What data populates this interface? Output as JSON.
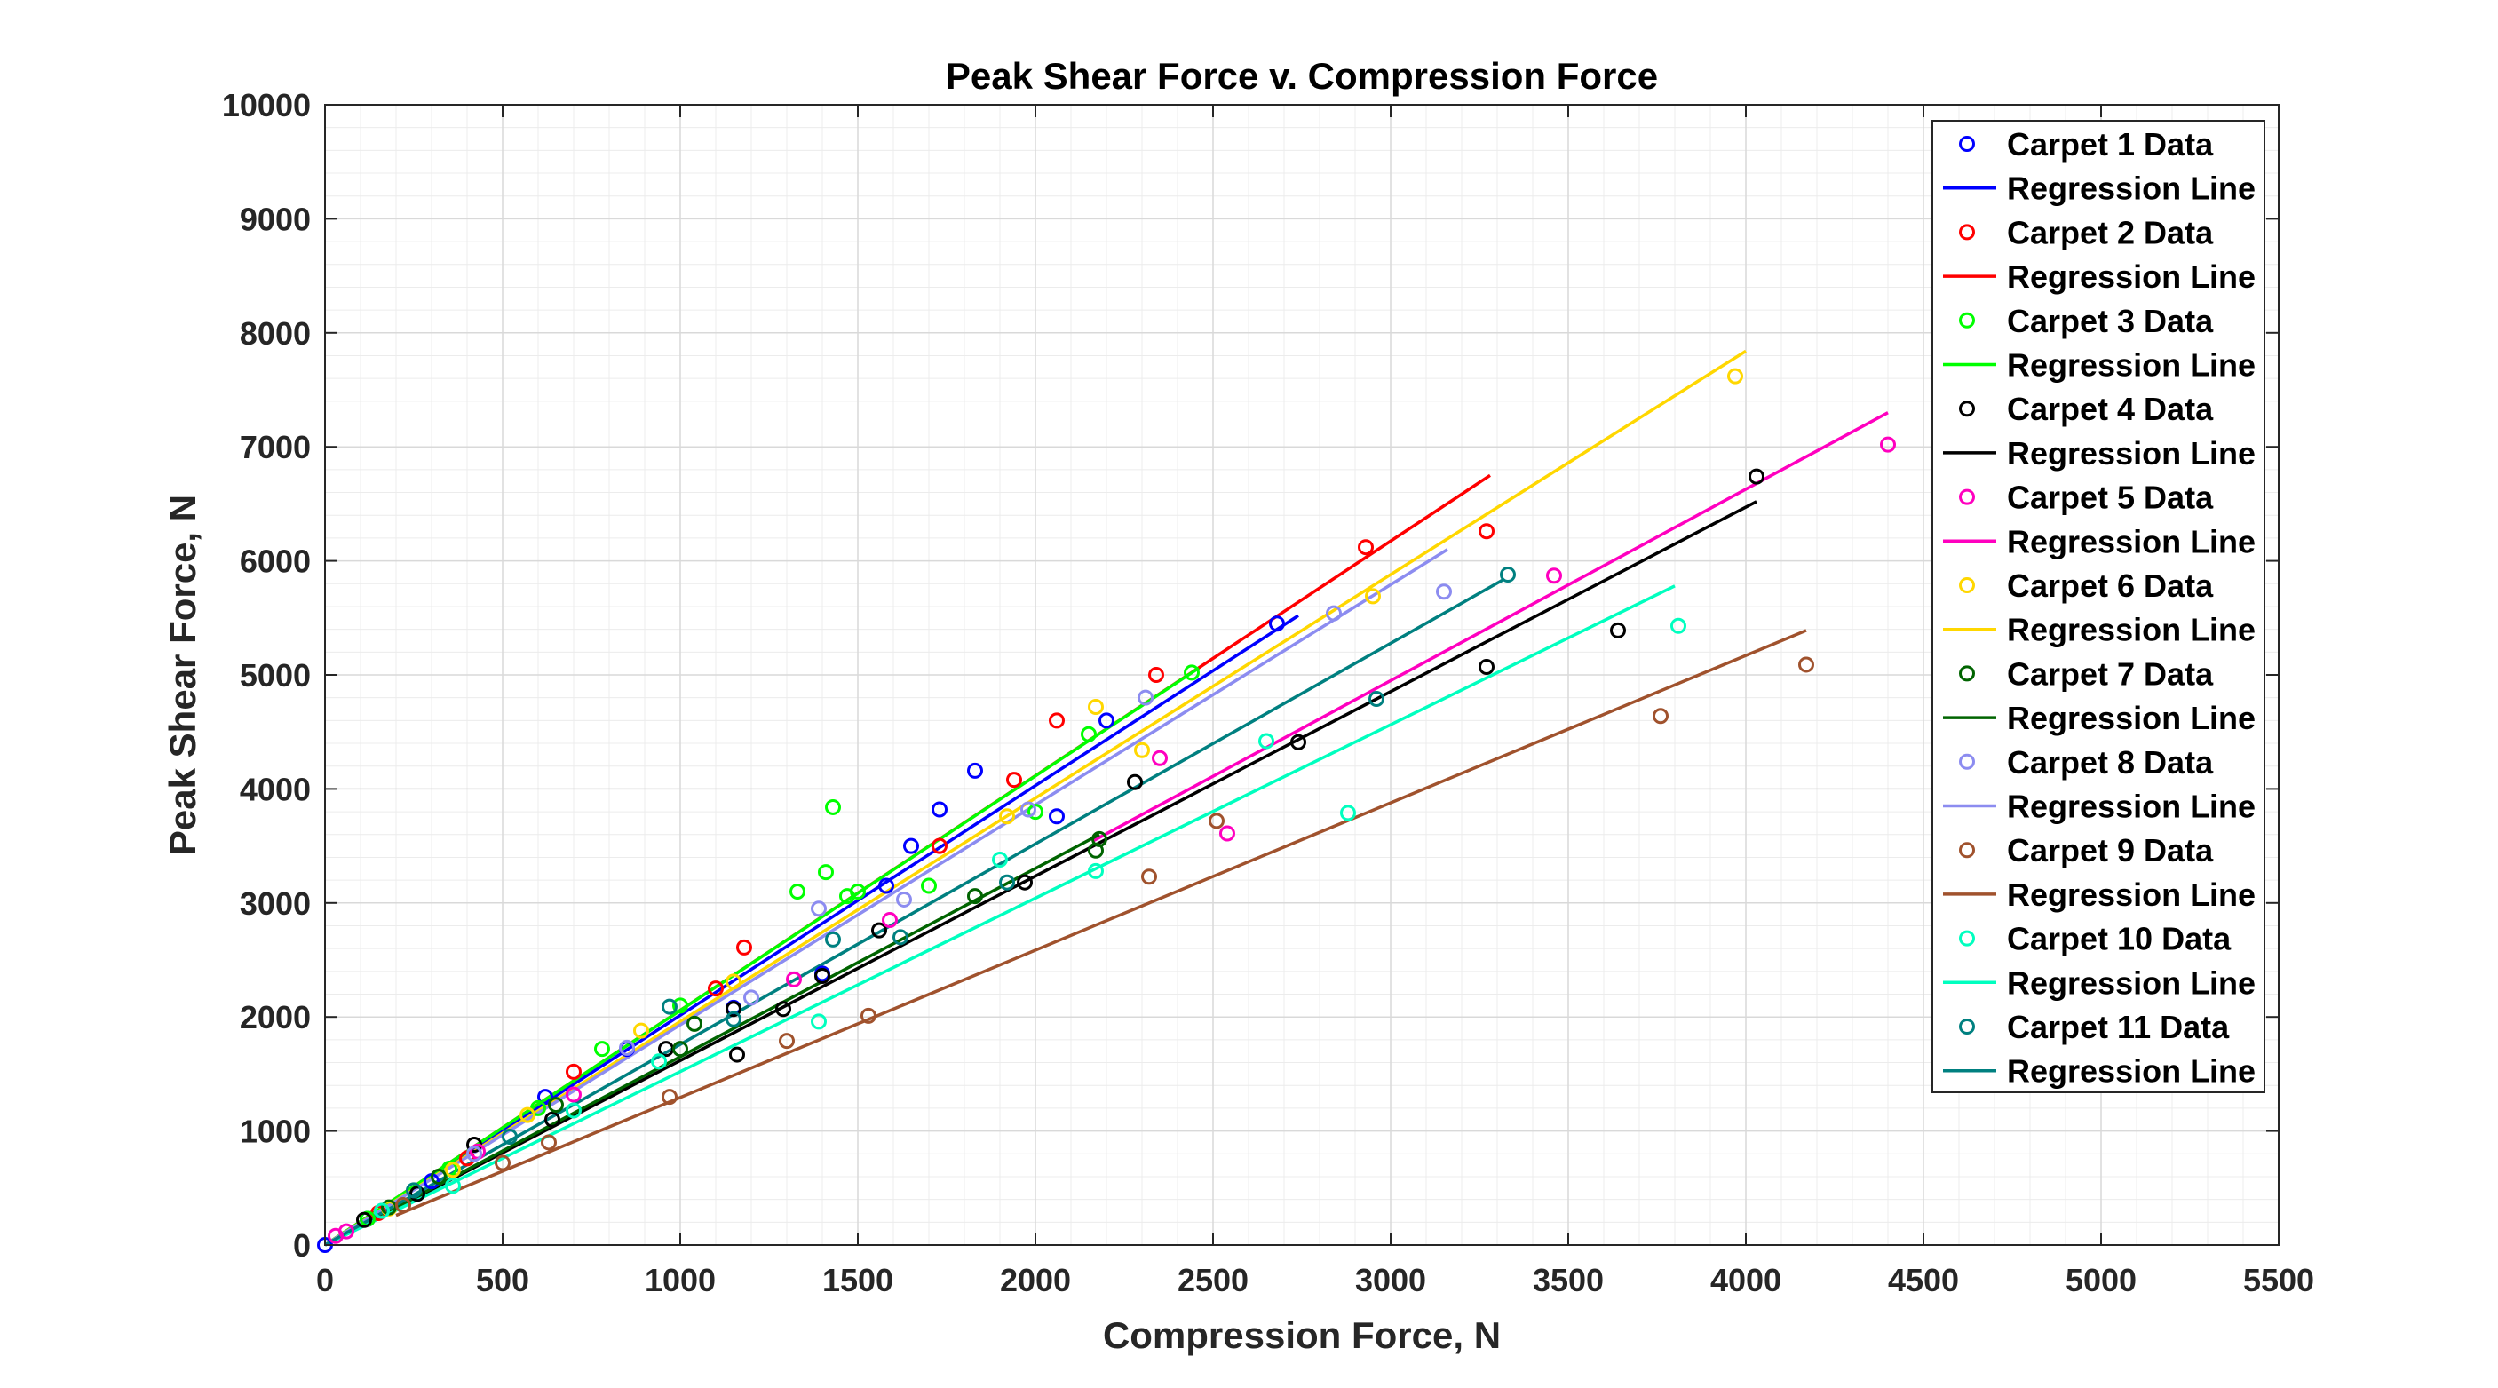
{
  "chart_data": {
    "type": "scatter",
    "title": "Peak Shear Force v. Compression Force",
    "xlabel": "Compression Force, N",
    "ylabel": "Peak Shear Force, N",
    "xlim": [
      0,
      5500
    ],
    "ylim": [
      0,
      10000
    ],
    "xticks": [
      0,
      500,
      1000,
      1500,
      2000,
      2500,
      3000,
      3500,
      4000,
      4500,
      5000,
      5500
    ],
    "yticks": [
      0,
      1000,
      2000,
      3000,
      4000,
      5000,
      6000,
      7000,
      8000,
      9000,
      10000
    ],
    "grid": true,
    "legend_position": "top-right",
    "series": [
      {
        "name": "Carpet 1 Data",
        "line_name": "Regression Line",
        "color": "#0000FF",
        "points": [
          [
            0,
            0
          ],
          [
            120,
            230
          ],
          [
            300,
            560
          ],
          [
            620,
            1300
          ],
          [
            850,
            1720
          ],
          [
            1150,
            2080
          ],
          [
            1400,
            2380
          ],
          [
            1580,
            3150
          ],
          [
            1650,
            3500
          ],
          [
            1730,
            3820
          ],
          [
            1830,
            4160
          ],
          [
            2060,
            3760
          ],
          [
            2200,
            4600
          ],
          [
            2680,
            5450
          ]
        ],
        "line": [
          [
            0,
            0
          ],
          [
            2740,
            5520
          ]
        ]
      },
      {
        "name": "Carpet 2 Data",
        "line_name": "Regression Line",
        "color": "#FF0000",
        "points": [
          [
            150,
            280
          ],
          [
            400,
            760
          ],
          [
            700,
            1520
          ],
          [
            1100,
            2250
          ],
          [
            1180,
            2610
          ],
          [
            1730,
            3500
          ],
          [
            1940,
            4080
          ],
          [
            2060,
            4600
          ],
          [
            2340,
            5000
          ],
          [
            2930,
            6120
          ],
          [
            3270,
            6260
          ]
        ],
        "line": [
          [
            0,
            0
          ],
          [
            3280,
            6750
          ]
        ]
      },
      {
        "name": "Carpet 3 Data",
        "line_name": "Regression Line",
        "color": "#00FF00",
        "points": [
          [
            120,
            230
          ],
          [
            350,
            670
          ],
          [
            600,
            1200
          ],
          [
            780,
            1720
          ],
          [
            1000,
            2100
          ],
          [
            1330,
            3100
          ],
          [
            1410,
            3270
          ],
          [
            1430,
            3840
          ],
          [
            1470,
            3060
          ],
          [
            1500,
            3100
          ],
          [
            1700,
            3150
          ],
          [
            2000,
            3800
          ],
          [
            2150,
            4480
          ],
          [
            2440,
            5020
          ]
        ],
        "line": [
          [
            0,
            0
          ],
          [
            2460,
            5060
          ]
        ]
      },
      {
        "name": "Carpet 4 Data",
        "line_name": "Regression Line",
        "color": "#000000",
        "points": [
          [
            110,
            220
          ],
          [
            260,
            450
          ],
          [
            420,
            880
          ],
          [
            640,
            1100
          ],
          [
            960,
            1720
          ],
          [
            1150,
            2070
          ],
          [
            1160,
            1670
          ],
          [
            1290,
            2070
          ],
          [
            1400,
            2360
          ],
          [
            1560,
            2760
          ],
          [
            1970,
            3180
          ],
          [
            2280,
            4060
          ],
          [
            2740,
            4410
          ],
          [
            3270,
            5070
          ],
          [
            3640,
            5390
          ],
          [
            4030,
            6740
          ]
        ],
        "line": [
          [
            0,
            0
          ],
          [
            4030,
            6520
          ]
        ]
      },
      {
        "name": "Carpet 5 Data",
        "line_name": "Regression Line",
        "color": "#FF00BF",
        "points": [
          [
            30,
            80
          ],
          [
            60,
            120
          ],
          [
            430,
            820
          ],
          [
            700,
            1320
          ],
          [
            1320,
            2330
          ],
          [
            1590,
            2850
          ],
          [
            2350,
            4270
          ],
          [
            2540,
            3610
          ],
          [
            3460,
            5870
          ],
          [
            4400,
            7020
          ]
        ],
        "line": [
          [
            2160,
            3540
          ],
          [
            4400,
            7300
          ]
        ]
      },
      {
        "name": "Carpet 6 Data",
        "line_name": "Regression Line",
        "color": "#FFD700",
        "points": [
          [
            180,
            320
          ],
          [
            360,
            660
          ],
          [
            570,
            1140
          ],
          [
            890,
            1880
          ],
          [
            1150,
            2310
          ],
          [
            1920,
            3760
          ],
          [
            2170,
            4720
          ],
          [
            2300,
            4340
          ],
          [
            2950,
            5690
          ],
          [
            3970,
            7620
          ]
        ],
        "line": [
          [
            0,
            0
          ],
          [
            4000,
            7840
          ]
        ]
      },
      {
        "name": "Carpet 7 Data",
        "line_name": "Regression Line",
        "color": "#006400",
        "points": [
          [
            180,
            330
          ],
          [
            320,
            600
          ],
          [
            650,
            1230
          ],
          [
            1000,
            1720
          ],
          [
            1040,
            1940
          ],
          [
            1830,
            3060
          ],
          [
            2170,
            3460
          ],
          [
            2180,
            3560
          ]
        ],
        "line": [
          [
            0,
            0
          ],
          [
            2180,
            3600
          ]
        ]
      },
      {
        "name": "Carpet 8 Data",
        "line_name": "Regression Line",
        "color": "#8C8CF0",
        "points": [
          [
            160,
            300
          ],
          [
            420,
            800
          ],
          [
            850,
            1730
          ],
          [
            1200,
            2170
          ],
          [
            1390,
            2950
          ],
          [
            1630,
            3030
          ],
          [
            1980,
            3820
          ],
          [
            2310,
            4800
          ],
          [
            2840,
            5540
          ],
          [
            3150,
            5730
          ]
        ],
        "line": [
          [
            0,
            0
          ],
          [
            3160,
            6100
          ]
        ]
      },
      {
        "name": "Carpet 9 Data",
        "line_name": "Regression Line",
        "color": "#A0522D",
        "points": [
          [
            220,
            350
          ],
          [
            500,
            720
          ],
          [
            630,
            900
          ],
          [
            970,
            1300
          ],
          [
            1300,
            1790
          ],
          [
            1530,
            2010
          ],
          [
            2320,
            3230
          ],
          [
            2510,
            3720
          ],
          [
            3760,
            4640
          ],
          [
            4170,
            5090
          ]
        ],
        "line": [
          [
            200,
            260
          ],
          [
            4170,
            5390
          ]
        ]
      },
      {
        "name": "Carpet 10 Data",
        "line_name": "Regression Line",
        "color": "#00FFBF",
        "points": [
          [
            160,
            300
          ],
          [
            360,
            520
          ],
          [
            700,
            1180
          ],
          [
            940,
            1610
          ],
          [
            1390,
            1960
          ],
          [
            1900,
            3380
          ],
          [
            2170,
            3280
          ],
          [
            2650,
            4420
          ],
          [
            2880,
            3790
          ],
          [
            3810,
            5430
          ]
        ],
        "line": [
          [
            0,
            0
          ],
          [
            3800,
            5780
          ]
        ]
      },
      {
        "name": "Carpet 11 Data",
        "line_name": "Regression Line",
        "color": "#008080",
        "points": [
          [
            250,
            480
          ],
          [
            520,
            950
          ],
          [
            970,
            2090
          ],
          [
            1150,
            1980
          ],
          [
            1430,
            2680
          ],
          [
            1620,
            2700
          ],
          [
            1920,
            3180
          ],
          [
            2960,
            4790
          ],
          [
            3330,
            5880
          ]
        ],
        "line": [
          [
            0,
            0
          ],
          [
            3320,
            5840
          ]
        ]
      }
    ]
  }
}
